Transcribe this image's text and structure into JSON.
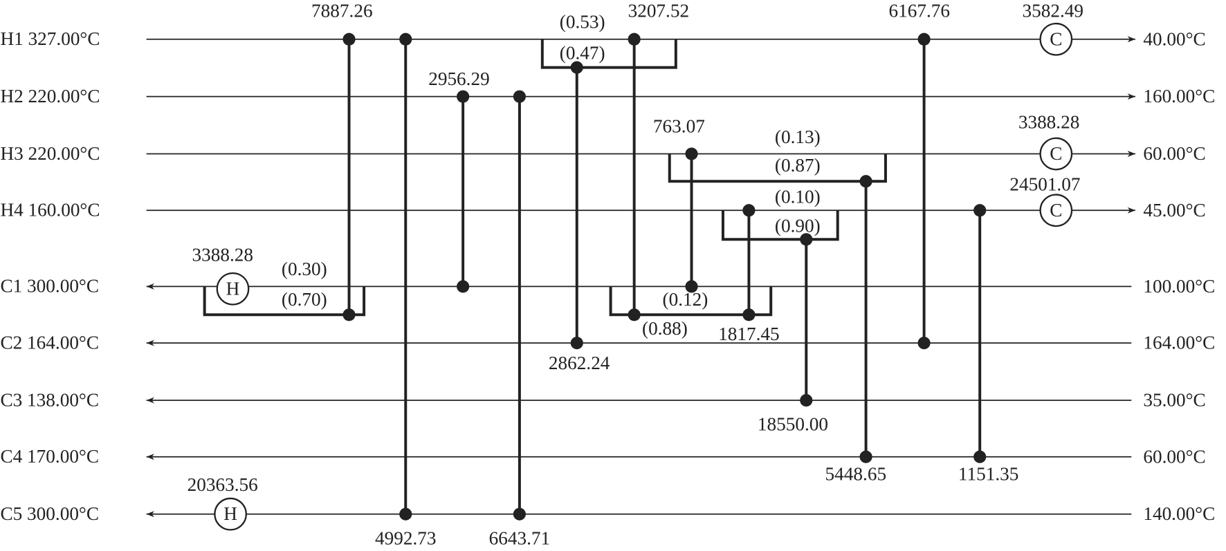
{
  "streams": [
    {
      "name": "H1",
      "inlet": "327.00°C",
      "outlet": "40.00°C"
    },
    {
      "name": "H2",
      "inlet": "220.00°C",
      "outlet": "160.00°C"
    },
    {
      "name": "H3",
      "inlet": "220.00°C",
      "outlet": "60.00°C"
    },
    {
      "name": "H4",
      "inlet": "160.00°C",
      "outlet": "45.00°C"
    },
    {
      "name": "C1",
      "inlet": "300.00°C",
      "outlet": "100.00°C"
    },
    {
      "name": "C2",
      "inlet": "164.00°C",
      "outlet": "164.00°C"
    },
    {
      "name": "C3",
      "inlet": "138.00°C",
      "outlet": "35.00°C"
    },
    {
      "name": "C4",
      "inlet": "170.00°C",
      "outlet": "60.00°C"
    },
    {
      "name": "C5",
      "inlet": "300.00°C",
      "outlet": "140.00°C"
    }
  ],
  "exchangers": [
    {
      "duty": "7887.26"
    },
    {
      "duty": "4992.73"
    },
    {
      "duty": "2956.29"
    },
    {
      "duty": "6643.71"
    },
    {
      "duty": "2862.24"
    },
    {
      "duty": "3207.52"
    },
    {
      "duty": "763.07"
    },
    {
      "duty": "1817.45"
    },
    {
      "duty": "18550.00"
    },
    {
      "duty": "5448.65"
    },
    {
      "duty": "6167.76"
    },
    {
      "duty": "1151.35"
    }
  ],
  "splits": [
    {
      "fractions": [
        "(0.53)",
        "(0.47)"
      ]
    },
    {
      "fractions": [
        "(0.13)",
        "(0.87)"
      ]
    },
    {
      "fractions": [
        "(0.10)",
        "(0.90)"
      ]
    },
    {
      "fractions": [
        "(0.30)",
        "(0.70)"
      ]
    },
    {
      "fractions": [
        "(0.12)",
        "(0.88)"
      ]
    }
  ],
  "utilities": [
    {
      "type": "C",
      "duty": "3582.49"
    },
    {
      "type": "C",
      "duty": "3388.28"
    },
    {
      "type": "C",
      "duty": "24501.07"
    },
    {
      "type": "H",
      "duty": "3388.28"
    },
    {
      "type": "H",
      "duty": "20363.56"
    }
  ]
}
